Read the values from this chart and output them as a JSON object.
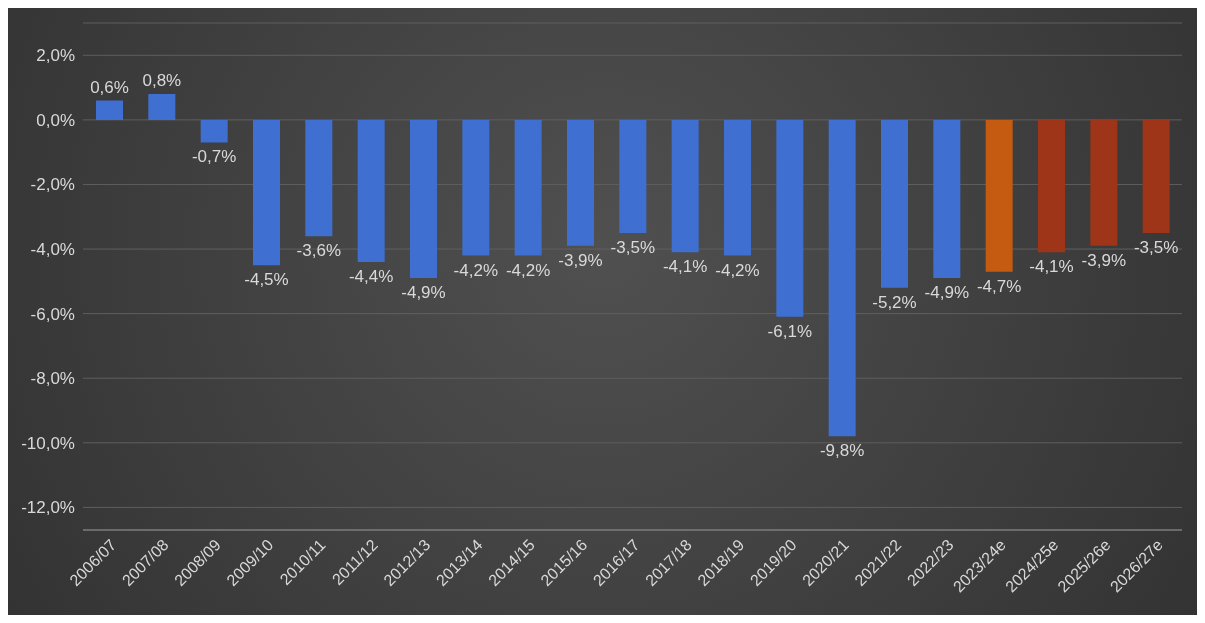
{
  "chart_data": {
    "type": "bar",
    "categories": [
      "2006/07",
      "2007/08",
      "2008/09",
      "2009/10",
      "2010/11",
      "2011/12",
      "2012/13",
      "2013/14",
      "2014/15",
      "2015/16",
      "2016/17",
      "2017/18",
      "2018/19",
      "2019/20",
      "2020/21",
      "2021/22",
      "2022/23",
      "2023/24e",
      "2024/25e",
      "2025/26e",
      "2026/27e"
    ],
    "values": [
      0.6,
      0.8,
      -0.7,
      -4.5,
      -3.6,
      -4.4,
      -4.9,
      -4.2,
      -4.2,
      -3.9,
      -3.5,
      -4.1,
      -4.2,
      -6.1,
      -9.8,
      -5.2,
      -4.9,
      -4.7,
      -4.1,
      -3.9,
      -3.5
    ],
    "value_labels": [
      "0,6%",
      "0,8%",
      "-0,7%",
      "-4,5%",
      "-3,6%",
      "-4,4%",
      "-4,9%",
      "-4,2%",
      "-4,2%",
      "-3,9%",
      "-3,5%",
      "-4,1%",
      "-4,2%",
      "-6,1%",
      "-9,8%",
      "-5,2%",
      "-4,9%",
      "-4,7%",
      "-4,1%",
      "-3,9%",
      "-3,5%"
    ],
    "colors": [
      "#3f6fd0",
      "#3f6fd0",
      "#3f6fd0",
      "#3f6fd0",
      "#3f6fd0",
      "#3f6fd0",
      "#3f6fd0",
      "#3f6fd0",
      "#3f6fd0",
      "#3f6fd0",
      "#3f6fd0",
      "#3f6fd0",
      "#3f6fd0",
      "#3f6fd0",
      "#3f6fd0",
      "#3f6fd0",
      "#3f6fd0",
      "#c55a11",
      "#9e3418",
      "#9e3418",
      "#9e3418"
    ],
    "ylim": [
      -12.7,
      3
    ],
    "yticks": [
      {
        "value": -12,
        "label": "-12,0%"
      },
      {
        "value": -10,
        "label": "-10,0%"
      },
      {
        "value": -8,
        "label": "-8,0%"
      },
      {
        "value": -6,
        "label": "-6,0%"
      },
      {
        "value": -4,
        "label": "-4,0%"
      },
      {
        "value": -2,
        "label": "-2,0%"
      },
      {
        "value": 0,
        "label": "0,0%"
      },
      {
        "value": 2,
        "label": "2,0%"
      }
    ],
    "grid": "y",
    "legend": false
  }
}
